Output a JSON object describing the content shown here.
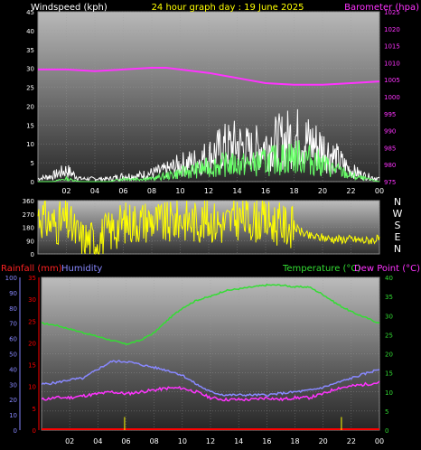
{
  "header": {
    "windspeed_label": "Windspeed (kph)",
    "title": "24 hour graph day : 19 June 2025",
    "barometer_label": "Barometer (hpa)"
  },
  "direction_labels": [
    "N",
    "W",
    "S",
    "E",
    "N"
  ],
  "lower_header": {
    "rainfall_label": "Rainfall (mm)",
    "humidity_label": "Humidity",
    "temperature_label": "Temperature (°C)",
    "dewpoint_label": "Dew Point (°C)"
  },
  "colors": {
    "wind_gust": "#ffffff",
    "wind_avg": "#66ff66",
    "barometer": "#ff33ff",
    "direction": "#ffff00",
    "temperature": "#33dd33",
    "humidity": "#8888ff",
    "dewpoint": "#ff33ff",
    "rainfall": "#ff0000",
    "rain_rate": "#ffff00"
  },
  "chart_data": [
    {
      "type": "line",
      "title": "24 hour graph day : 19 June 2025",
      "x_ticks": [
        "02",
        "04",
        "06",
        "08",
        "10",
        "12",
        "14",
        "16",
        "18",
        "20",
        "22",
        "00"
      ],
      "left_axis": {
        "label": "Windspeed (kph)",
        "range": [
          0,
          45
        ],
        "ticks": [
          0,
          5,
          10,
          15,
          20,
          25,
          30,
          35,
          40,
          45
        ]
      },
      "right_axis": {
        "label": "Barometer (hpa)",
        "range": [
          975,
          1025
        ],
        "ticks": [
          975,
          980,
          985,
          990,
          995,
          1000,
          1005,
          1010,
          1015,
          1020,
          1025
        ]
      },
      "series": [
        {
          "name": "Barometer",
          "axis": "right",
          "x": [
            0,
            2,
            4,
            6,
            8,
            9,
            10,
            12,
            14,
            16,
            18,
            20,
            22,
            24
          ],
          "values": [
            1008,
            1008,
            1007.5,
            1008,
            1008.5,
            1008.5,
            1008,
            1007,
            1005.5,
            1004,
            1003.5,
            1003.5,
            1004,
            1004.5
          ]
        },
        {
          "name": "Wind gust",
          "axis": "left",
          "x": [
            0,
            1,
            2,
            3,
            4,
            5,
            6,
            7,
            8,
            9,
            10,
            11,
            12,
            13,
            14,
            15,
            16,
            17,
            18,
            19,
            20,
            21,
            22,
            23,
            24
          ],
          "values": [
            1,
            2,
            4,
            1,
            1,
            1,
            2,
            2,
            3,
            4,
            6,
            7,
            9,
            12,
            13,
            11,
            13,
            14,
            16,
            14,
            12,
            8,
            4,
            2,
            1
          ]
        },
        {
          "name": "Wind average",
          "axis": "left",
          "x": [
            0,
            1,
            2,
            3,
            4,
            5,
            6,
            7,
            8,
            9,
            10,
            11,
            12,
            13,
            14,
            15,
            16,
            17,
            18,
            19,
            20,
            21,
            22,
            23,
            24
          ],
          "values": [
            0,
            0,
            1,
            0,
            0,
            0,
            1,
            1,
            1,
            2,
            3,
            4,
            5,
            6,
            6,
            6,
            7,
            8,
            9,
            8,
            6,
            4,
            2,
            1,
            0
          ]
        }
      ]
    },
    {
      "type": "scatter",
      "title": "Wind direction",
      "x_ticks": [
        "02",
        "04",
        "06",
        "08",
        "10",
        "12",
        "14",
        "16",
        "18",
        "20",
        "22",
        "00"
      ],
      "y_axis": {
        "range": [
          0,
          360
        ],
        "ticks": [
          0,
          90,
          180,
          270,
          360
        ]
      },
      "series": [
        {
          "name": "Direction",
          "x": [
            0,
            1,
            2,
            3,
            4,
            5,
            6,
            7,
            8,
            9,
            10,
            11,
            12,
            13,
            14,
            15,
            16,
            17,
            18,
            19,
            20,
            21,
            22,
            23,
            24
          ],
          "values": [
            270,
            200,
            220,
            100,
            90,
            150,
            210,
            220,
            230,
            200,
            240,
            220,
            230,
            200,
            240,
            230,
            220,
            200,
            180,
            120,
            110,
            100,
            100,
            90,
            100
          ]
        }
      ]
    },
    {
      "type": "line",
      "title": "",
      "x_ticks": [
        "02",
        "04",
        "06",
        "08",
        "10",
        "12",
        "14",
        "16",
        "18",
        "20",
        "22",
        "00"
      ],
      "left_axis_1": {
        "label": "Humidity",
        "range": [
          0,
          100
        ],
        "ticks": [
          0,
          10,
          20,
          30,
          40,
          50,
          60,
          70,
          80,
          90,
          100
        ]
      },
      "left_axis_2": {
        "label": "Rainfall (mm)",
        "range": [
          0,
          35
        ],
        "ticks": [
          0,
          5,
          10,
          15,
          20,
          25,
          30,
          35
        ]
      },
      "right_axis": {
        "label": "Temperature (°C)",
        "range": [
          0,
          40
        ],
        "ticks": [
          0,
          5,
          10,
          15,
          20,
          25,
          30,
          35,
          40
        ]
      },
      "series": [
        {
          "name": "Temperature",
          "axis": "right",
          "x": [
            0,
            1,
            2,
            3,
            4,
            5,
            5.5,
            6,
            7,
            8,
            9,
            10,
            11,
            12,
            13,
            14,
            15,
            16,
            17,
            18,
            19,
            20,
            21,
            22,
            23,
            24
          ],
          "values": [
            28,
            27.5,
            26.5,
            25.5,
            24.5,
            23.5,
            23,
            22.5,
            23.5,
            25.5,
            29,
            32,
            34,
            35,
            36.5,
            37,
            37.5,
            38,
            38,
            37.5,
            37.5,
            35.5,
            33,
            31,
            29.5,
            28
          ]
        },
        {
          "name": "Humidity",
          "axis": "left",
          "x": [
            0,
            1,
            2,
            3,
            4,
            5,
            6,
            7,
            8,
            9,
            10,
            11,
            12,
            13,
            14,
            15,
            16,
            17,
            18,
            19,
            20,
            21,
            22,
            23,
            24
          ],
          "values": [
            30,
            31,
            33,
            34,
            40,
            45,
            45,
            43,
            41,
            39,
            36,
            30,
            25,
            23,
            23,
            23,
            23,
            24,
            25,
            26,
            28,
            31,
            34,
            37,
            40
          ]
        },
        {
          "name": "Dew Point",
          "axis": "right",
          "x": [
            0,
            1,
            2,
            3,
            4,
            5,
            6,
            7,
            8,
            9,
            10,
            11,
            12,
            13,
            14,
            15,
            16,
            17,
            18,
            19,
            20,
            21,
            22,
            23,
            24
          ],
          "values": [
            8,
            8.5,
            8.5,
            9,
            9.5,
            10,
            9.5,
            10,
            10.5,
            11,
            11,
            10,
            8.5,
            8,
            8,
            8,
            8.5,
            8,
            8.5,
            8.5,
            9.5,
            11,
            11.5,
            12,
            12.5
          ]
        },
        {
          "name": "Rainfall",
          "axis": "left2",
          "x": [
            0,
            24
          ],
          "values": [
            0,
            0
          ]
        },
        {
          "name": "Rain rate",
          "axis": "left2",
          "x": [
            5.9,
            21.3
          ],
          "values": [
            3,
            3
          ]
        }
      ]
    }
  ]
}
